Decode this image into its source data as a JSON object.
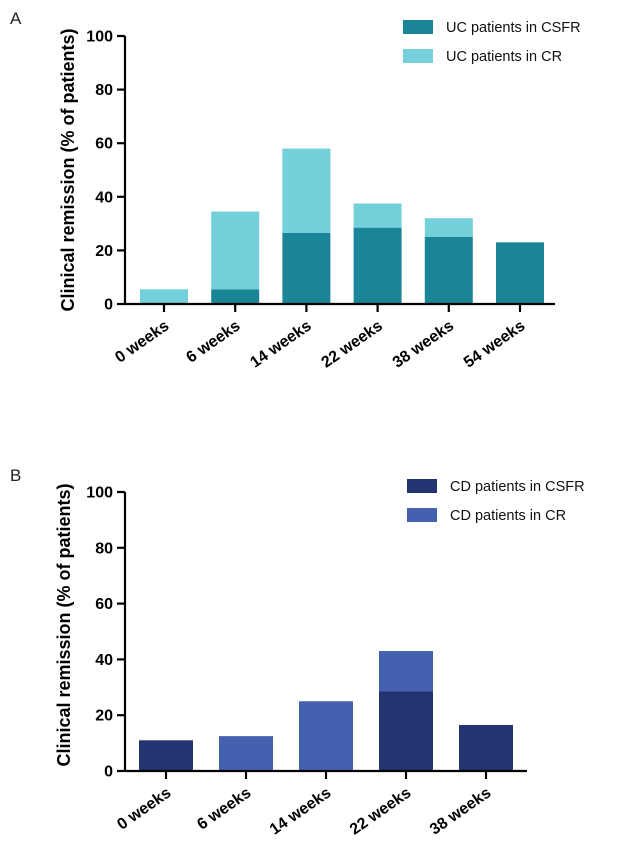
{
  "chart_data": [
    {
      "panel": "A",
      "type": "bar",
      "stacked": true,
      "categories": [
        "0 weeks",
        "6 weeks",
        "14 weeks",
        "22 weeks",
        "38 weeks",
        "54 weeks"
      ],
      "ylabel": "Clinical remission (% of patients)",
      "ylim": [
        0,
        100
      ],
      "yticks": [
        0,
        20,
        40,
        60,
        80,
        100
      ],
      "legend_position": "top-right",
      "series": [
        {
          "name": "UC patients in CSFR",
          "color": "#1a8597",
          "values": [
            0,
            5.5,
            26.5,
            28.5,
            25,
            23
          ]
        },
        {
          "name": "UC patients in CR",
          "color": "#74d0db",
          "values": [
            5.5,
            29,
            31.5,
            9,
            7,
            0
          ]
        }
      ]
    },
    {
      "panel": "B",
      "type": "bar",
      "stacked": true,
      "categories": [
        "0 weeks",
        "6 weeks",
        "14 weeks",
        "22 weeks",
        "38 weeks"
      ],
      "ylabel": "Clinical remission (% of patients)",
      "ylim": [
        0,
        100
      ],
      "yticks": [
        0,
        20,
        40,
        60,
        80,
        100
      ],
      "legend_position": "top-right",
      "series": [
        {
          "name": "CD patients in CSFR",
          "color": "#243470",
          "values": [
            11,
            0,
            0,
            28.5,
            16.5
          ]
        },
        {
          "name": "CD patients in CR",
          "color": "#4460ae",
          "values": [
            0,
            12.5,
            25,
            14.5,
            0
          ]
        }
      ]
    }
  ]
}
